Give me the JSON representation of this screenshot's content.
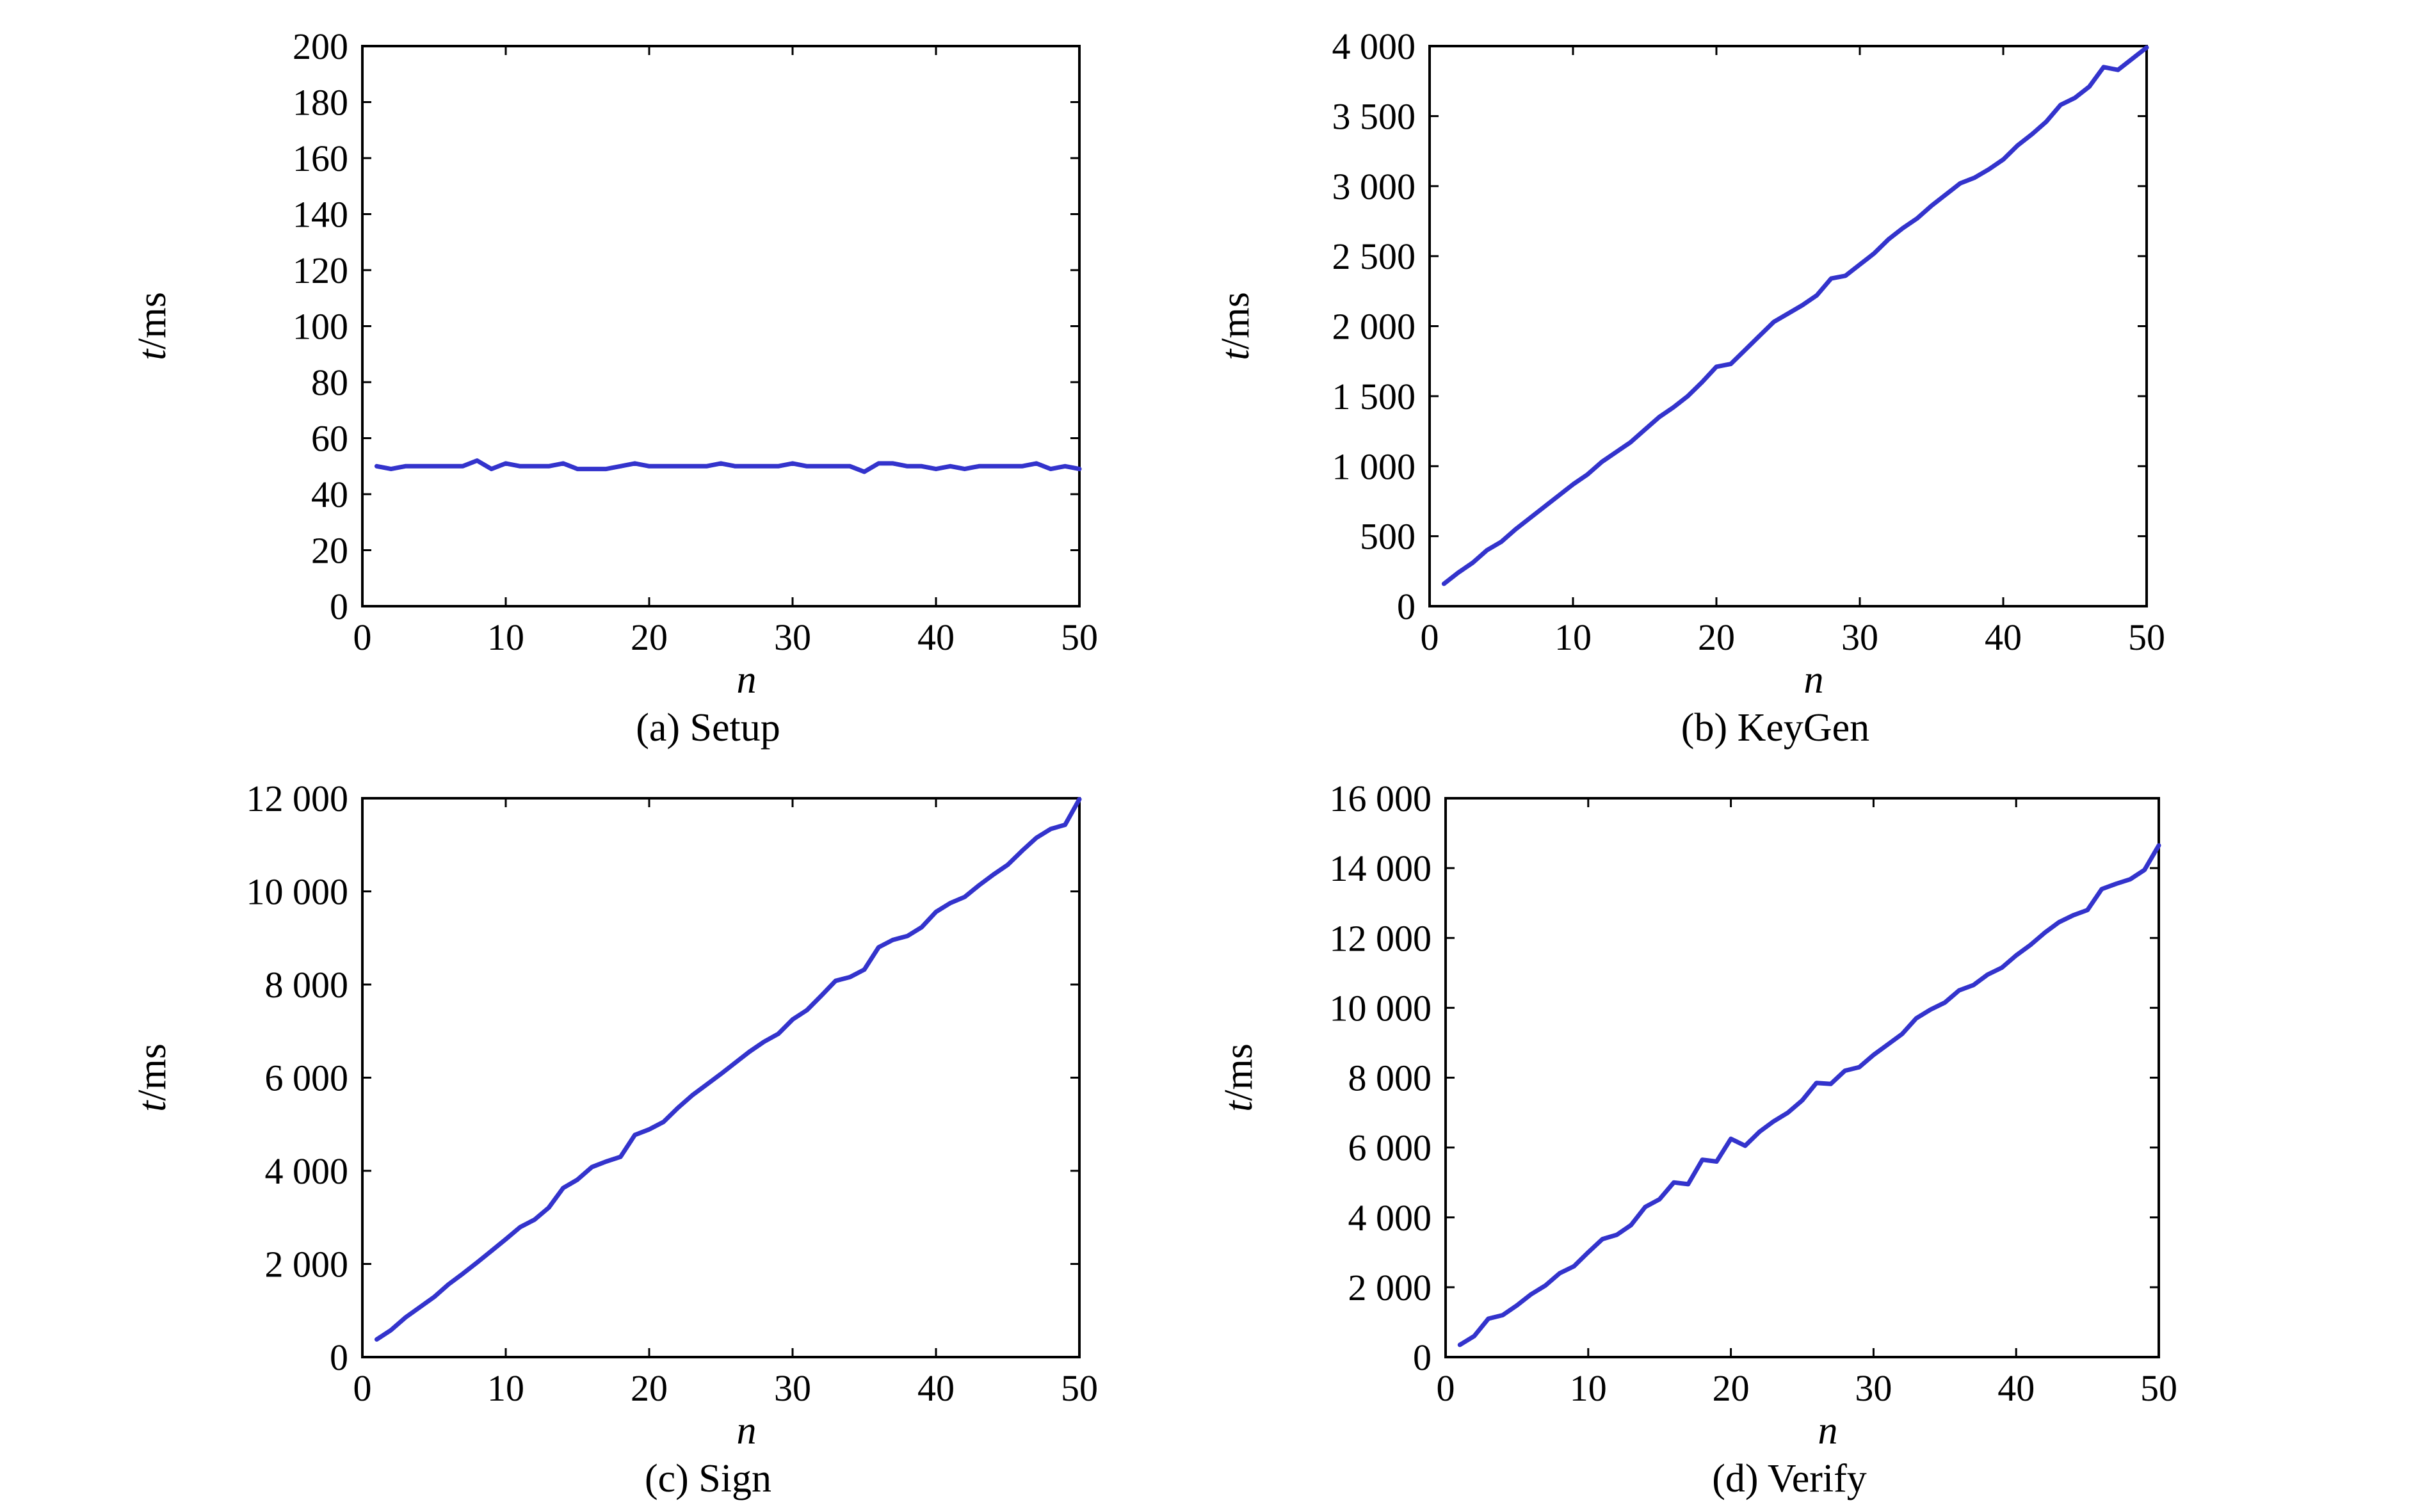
{
  "colors": {
    "line": "#3333cc",
    "axis": "#000000",
    "background": "#ffffff"
  },
  "chart_data": [
    {
      "type": "line",
      "caption": "(a) Setup",
      "xlabel": "n",
      "ylabel": "t/ms",
      "xlim": [
        0,
        50
      ],
      "ylim": [
        0,
        200
      ],
      "xticks": [
        "0",
        "10",
        "20",
        "30",
        "40",
        "50"
      ],
      "yticks": [
        "0",
        "20",
        "40",
        "60",
        "80",
        "100",
        "120",
        "140",
        "160",
        "180",
        "200"
      ],
      "grid": false,
      "series": [
        {
          "x": [
            1,
            2,
            3,
            4,
            5,
            6,
            7,
            8,
            9,
            10,
            11,
            12,
            13,
            14,
            15,
            16,
            17,
            18,
            19,
            20,
            21,
            22,
            23,
            24,
            25,
            26,
            27,
            28,
            29,
            30,
            31,
            32,
            33,
            34,
            35,
            36,
            37,
            38,
            39,
            40,
            41,
            42,
            43,
            44,
            45,
            46,
            47,
            48,
            49,
            50
          ],
          "values": [
            50,
            49,
            50,
            50,
            50,
            50,
            50,
            52,
            49,
            51,
            50,
            50,
            50,
            51,
            49,
            49,
            49,
            50,
            51,
            50,
            50,
            50,
            50,
            50,
            51,
            50,
            50,
            50,
            50,
            51,
            50,
            50,
            50,
            50,
            48,
            51,
            51,
            50,
            50,
            49,
            50,
            49,
            50,
            50,
            50,
            50,
            51,
            49,
            50,
            49
          ]
        }
      ]
    },
    {
      "type": "line",
      "caption": "(b) KeyGen",
      "xlabel": "n",
      "ylabel": "t/ms",
      "xlim": [
        0,
        50
      ],
      "ylim": [
        0,
        4000
      ],
      "xticks": [
        "0",
        "10",
        "20",
        "30",
        "40",
        "50"
      ],
      "yticks": [
        "0",
        "500",
        "1 000",
        "1 500",
        "2 000",
        "2 500",
        "3 000",
        "3 500",
        "4 000"
      ],
      "grid": false,
      "series": [
        {
          "x": [
            1,
            2,
            3,
            4,
            5,
            6,
            7,
            8,
            9,
            10,
            11,
            12,
            13,
            14,
            15,
            16,
            17,
            18,
            19,
            20,
            21,
            22,
            23,
            24,
            25,
            26,
            27,
            28,
            29,
            30,
            31,
            32,
            33,
            34,
            35,
            36,
            37,
            38,
            39,
            40,
            41,
            42,
            43,
            44,
            45,
            46,
            47,
            48,
            49,
            50
          ],
          "values": [
            160,
            240,
            310,
            400,
            460,
            550,
            630,
            710,
            790,
            870,
            940,
            1030,
            1100,
            1170,
            1260,
            1350,
            1420,
            1500,
            1600,
            1710,
            1730,
            1830,
            1930,
            2030,
            2090,
            2150,
            2220,
            2340,
            2360,
            2440,
            2520,
            2620,
            2700,
            2770,
            2860,
            2940,
            3020,
            3060,
            3120,
            3190,
            3290,
            3370,
            3460,
            3580,
            3630,
            3710,
            3850,
            3830,
            3910,
            3990
          ]
        }
      ]
    },
    {
      "type": "line",
      "caption": "(c) Sign",
      "xlabel": "n",
      "ylabel": "t/ms",
      "xlim": [
        0,
        50
      ],
      "ylim": [
        0,
        12000
      ],
      "xticks": [
        "0",
        "10",
        "20",
        "30",
        "40",
        "50"
      ],
      "yticks": [
        "0",
        "2 000",
        "4 000",
        "6 000",
        "8 000",
        "10 000",
        "12 000"
      ],
      "grid": false,
      "series": [
        {
          "x": [
            1,
            2,
            3,
            4,
            5,
            6,
            7,
            8,
            9,
            10,
            11,
            12,
            13,
            14,
            15,
            16,
            17,
            18,
            19,
            20,
            21,
            22,
            23,
            24,
            25,
            26,
            27,
            28,
            29,
            30,
            31,
            32,
            33,
            34,
            35,
            36,
            37,
            38,
            39,
            40,
            41,
            42,
            43,
            44,
            45,
            46,
            47,
            48,
            49,
            50
          ],
          "values": [
            380,
            580,
            850,
            1070,
            1290,
            1560,
            1790,
            2030,
            2280,
            2530,
            2790,
            2950,
            3210,
            3630,
            3810,
            4080,
            4200,
            4300,
            4770,
            4890,
            5050,
            5350,
            5620,
            5850,
            6080,
            6320,
            6560,
            6770,
            6940,
            7250,
            7450,
            7760,
            8080,
            8160,
            8320,
            8800,
            8960,
            9040,
            9230,
            9560,
            9750,
            9880,
            10130,
            10360,
            10570,
            10870,
            11150,
            11340,
            11430,
            11980
          ]
        }
      ]
    },
    {
      "type": "line",
      "caption": "(d) Verify",
      "xlabel": "n",
      "ylabel": "t/ms",
      "xlim": [
        0,
        50
      ],
      "ylim": [
        0,
        16000
      ],
      "xticks": [
        "0",
        "10",
        "20",
        "30",
        "40",
        "50"
      ],
      "yticks": [
        "0",
        "2 000",
        "4 000",
        "6 000",
        "8 000",
        "10 000",
        "12 000",
        "14 000",
        "16 000"
      ],
      "grid": false,
      "series": [
        {
          "x": [
            1,
            2,
            3,
            4,
            5,
            6,
            7,
            8,
            9,
            10,
            11,
            12,
            13,
            14,
            15,
            16,
            17,
            18,
            19,
            20,
            21,
            22,
            23,
            24,
            25,
            26,
            27,
            28,
            29,
            30,
            31,
            32,
            33,
            34,
            35,
            36,
            37,
            38,
            39,
            40,
            41,
            42,
            43,
            44,
            45,
            46,
            47,
            48,
            49,
            50
          ],
          "values": [
            350,
            600,
            1100,
            1200,
            1480,
            1800,
            2050,
            2400,
            2600,
            3000,
            3380,
            3500,
            3780,
            4300,
            4520,
            5000,
            4950,
            5650,
            5600,
            6250,
            6050,
            6450,
            6750,
            7000,
            7350,
            7850,
            7820,
            8200,
            8300,
            8650,
            8950,
            9250,
            9700,
            9950,
            10150,
            10500,
            10650,
            10950,
            11150,
            11500,
            11800,
            12150,
            12450,
            12650,
            12800,
            13400,
            13550,
            13680,
            13950,
            14650
          ]
        }
      ]
    }
  ]
}
